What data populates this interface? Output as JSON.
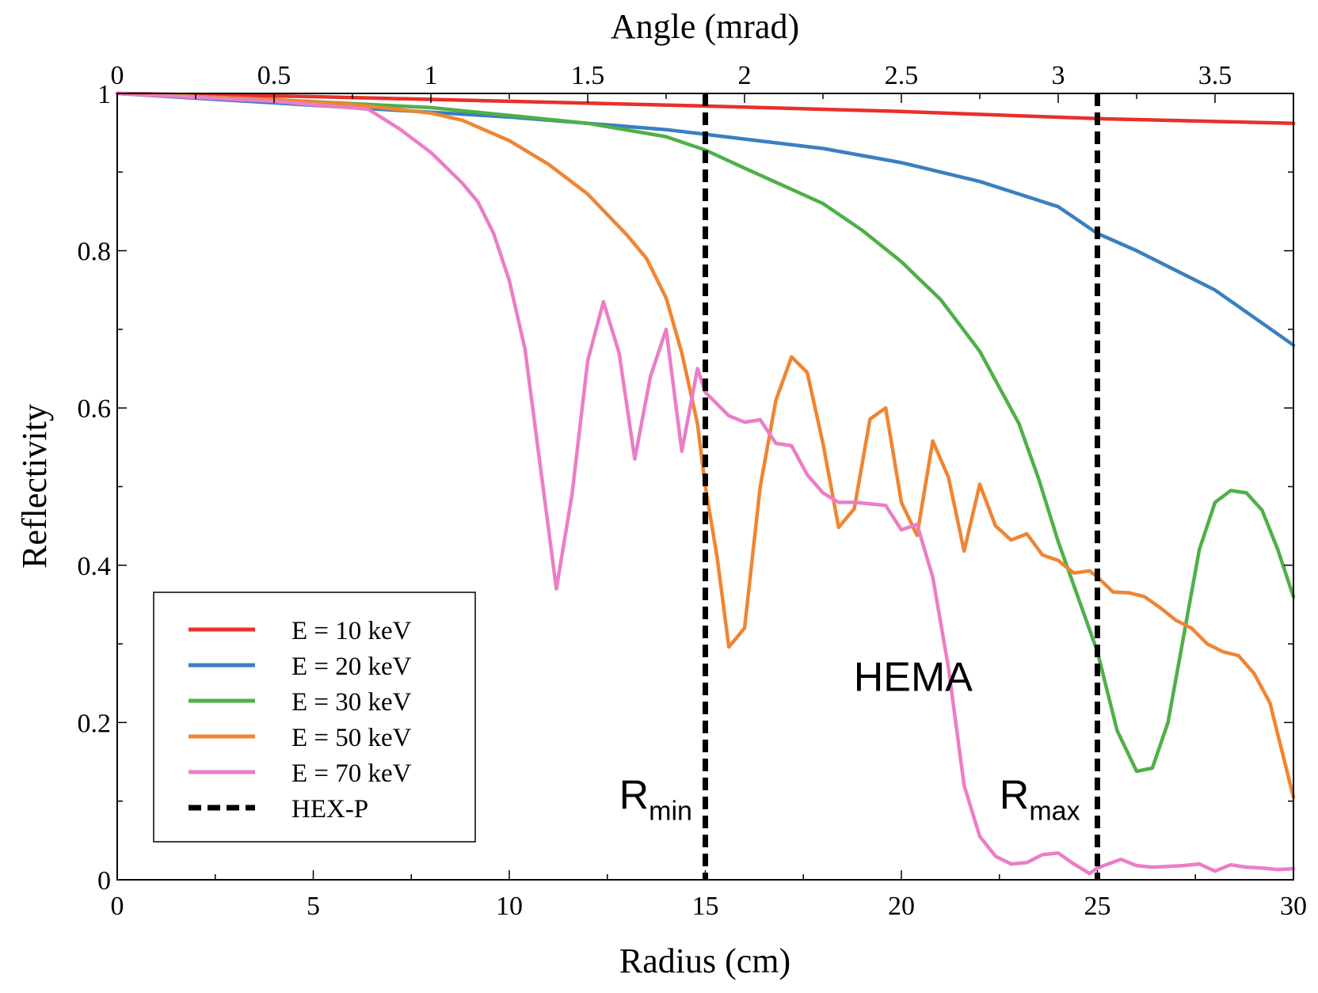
{
  "chart_data": {
    "type": "line",
    "title": "",
    "xlabel": "Radius (cm)",
    "ylabel": "Reflectivity",
    "x2label": "Angle (mrad)",
    "xlim": [
      0,
      30
    ],
    "ylim": [
      0,
      1
    ],
    "x2lim": [
      0,
      3.75
    ],
    "xticks": [
      0,
      5,
      10,
      15,
      20,
      25,
      30
    ],
    "xtick_labels": [
      "0",
      "5",
      "10",
      "15",
      "20",
      "25",
      "30"
    ],
    "yticks": [
      0,
      0.2,
      0.4,
      0.6,
      0.8,
      1
    ],
    "ytick_labels": [
      "0",
      "0.2",
      "0.4",
      "0.6",
      "0.8",
      "1"
    ],
    "x2ticks": [
      0,
      0.5,
      1,
      1.5,
      2,
      2.5,
      3,
      3.5
    ],
    "x2tick_labels": [
      "0",
      "0.5",
      "1",
      "1.5",
      "2",
      "2.5",
      "3",
      "3.5"
    ],
    "legend_position": "bottom-left",
    "grid": false,
    "series": [
      {
        "name": "E = 10 keV",
        "color": "#e8302a",
        "x": [
          0,
          5,
          10,
          15,
          20,
          25,
          30
        ],
        "y": [
          1.0,
          0.996,
          0.99,
          0.984,
          0.977,
          0.968,
          0.962
        ]
      },
      {
        "name": "E = 20 keV",
        "color": "#3a7fc1",
        "x": [
          0,
          2,
          4,
          6,
          8,
          10,
          12,
          14,
          15,
          16,
          18,
          20,
          22,
          24,
          25,
          26,
          28,
          30
        ],
        "y": [
          1.0,
          0.994,
          0.988,
          0.982,
          0.976,
          0.97,
          0.962,
          0.954,
          0.948,
          0.942,
          0.93,
          0.912,
          0.888,
          0.856,
          0.822,
          0.8,
          0.75,
          0.68
        ]
      },
      {
        "name": "E = 30 keV",
        "color": "#4fb048",
        "x": [
          0,
          4,
          8,
          10,
          12,
          14,
          15,
          16,
          18,
          19,
          20,
          21,
          22,
          23,
          23.5,
          24,
          24.5,
          25,
          25.5,
          26,
          26.4,
          26.8,
          27.2,
          27.6,
          28,
          28.4,
          28.8,
          29.2,
          29.6,
          30
        ],
        "y": [
          1.0,
          0.992,
          0.982,
          0.972,
          0.962,
          0.945,
          0.928,
          0.905,
          0.86,
          0.826,
          0.786,
          0.738,
          0.672,
          0.58,
          0.51,
          0.43,
          0.36,
          0.29,
          0.19,
          0.138,
          0.142,
          0.2,
          0.31,
          0.42,
          0.48,
          0.495,
          0.492,
          0.47,
          0.42,
          0.36
        ]
      },
      {
        "name": "E = 50 keV",
        "color": "#ef8533",
        "x": [
          0,
          4,
          6,
          8,
          8.8,
          10,
          11,
          12,
          13,
          13.5,
          14,
          14.4,
          14.8,
          15,
          15.3,
          15.6,
          16,
          16.4,
          16.8,
          17.2,
          17.6,
          18,
          18.4,
          18.8,
          19.2,
          19.6,
          20,
          20.4,
          20.8,
          21.2,
          21.6,
          22,
          22.4,
          22.8,
          23.2,
          23.6,
          24,
          24.4,
          24.8,
          25,
          25.4,
          25.8,
          26.2,
          26.6,
          27,
          27.4,
          27.8,
          28.2,
          28.6,
          29,
          29.4,
          30
        ],
        "y": [
          1.0,
          0.992,
          0.986,
          0.975,
          0.966,
          0.94,
          0.91,
          0.872,
          0.82,
          0.79,
          0.74,
          0.67,
          0.58,
          0.5,
          0.41,
          0.296,
          0.32,
          0.5,
          0.61,
          0.665,
          0.645,
          0.555,
          0.448,
          0.472,
          0.586,
          0.6,
          0.48,
          0.438,
          0.558,
          0.512,
          0.418,
          0.503,
          0.45,
          0.432,
          0.44,
          0.413,
          0.406,
          0.39,
          0.393,
          0.385,
          0.366,
          0.365,
          0.36,
          0.346,
          0.33,
          0.32,
          0.3,
          0.29,
          0.285,
          0.262,
          0.225,
          0.105
        ]
      },
      {
        "name": "E = 70 keV",
        "color": "#ea7ec6",
        "x": [
          0,
          4,
          6.4,
          7.2,
          8,
          8.8,
          9.2,
          9.6,
          10,
          10.4,
          11.2,
          11.6,
          12,
          12.4,
          12.8,
          13.2,
          13.6,
          14,
          14.4,
          14.8,
          15,
          15.6,
          16,
          16.4,
          16.8,
          17.2,
          17.6,
          18,
          18.4,
          18.8,
          19.2,
          19.6,
          20,
          20.4,
          20.8,
          21.2,
          21.6,
          22,
          22.4,
          22.8,
          23.2,
          23.6,
          24,
          24.4,
          24.8,
          25,
          25.6,
          26,
          26.4,
          27.2,
          27.6,
          28,
          28.4,
          28.8,
          29.2,
          29.6,
          30
        ],
        "y": [
          1.0,
          0.99,
          0.98,
          0.955,
          0.925,
          0.886,
          0.862,
          0.822,
          0.762,
          0.675,
          0.37,
          0.49,
          0.66,
          0.735,
          0.67,
          0.535,
          0.64,
          0.7,
          0.545,
          0.65,
          0.62,
          0.59,
          0.582,
          0.585,
          0.555,
          0.552,
          0.515,
          0.492,
          0.48,
          0.48,
          0.478,
          0.476,
          0.445,
          0.452,
          0.385,
          0.27,
          0.12,
          0.055,
          0.03,
          0.02,
          0.022,
          0.032,
          0.034,
          0.02,
          0.008,
          0.015,
          0.026,
          0.018,
          0.016,
          0.018,
          0.02,
          0.011,
          0.019,
          0.016,
          0.015,
          0.013,
          0.014
        ]
      },
      {
        "name": "HEX-P",
        "color": "#000000",
        "style": "dashed",
        "vertical_lines_x": [
          15,
          25
        ]
      }
    ],
    "annotations": [
      {
        "id": "hema",
        "text": "HEMA",
        "x": 20.3,
        "y": 0.24
      },
      {
        "id": "rmin",
        "text": "R",
        "sub": "min",
        "x": 12.8,
        "y": 0.09
      },
      {
        "id": "rmax",
        "text": "R",
        "sub": "max",
        "x": 22.5,
        "y": 0.09
      }
    ]
  }
}
